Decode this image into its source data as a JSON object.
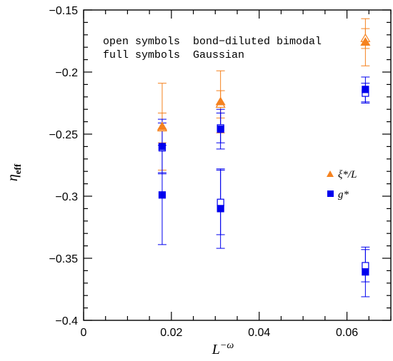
{
  "chart_data": {
    "type": "scatter",
    "title": "",
    "xlabel": "L",
    "xlabel_sup": "−ω",
    "ylabel": "η",
    "ylabel_sub": "eff",
    "xlim": [
      0,
      0.07
    ],
    "ylim": [
      -0.4,
      -0.15
    ],
    "x_ticks": [
      0,
      0.02,
      0.04,
      0.06
    ],
    "x_tick_labels": [
      "0",
      "0.02",
      "0.04",
      "0.06"
    ],
    "y_ticks": [
      -0.4,
      -0.35,
      -0.3,
      -0.25,
      -0.2,
      -0.15
    ],
    "y_tick_labels": [
      "−0.4",
      "−0.35",
      "−0.3",
      "−0.25",
      "−0.2",
      "−0.15"
    ],
    "grid": false,
    "legend_position": "right-middle",
    "annotations": [
      "open symbols  bond−diluted bimodal",
      "full symbols  Gaussian"
    ],
    "series": [
      {
        "name": "ξ*/L",
        "label_main": "ξ*/L",
        "color": "#f5821f",
        "marker": "triangle",
        "points": [
          {
            "x": 0.0179,
            "y": -0.245,
            "err": 0.012,
            "fill": "open"
          },
          {
            "x": 0.0179,
            "y": -0.244,
            "err": 0.035,
            "fill": "full"
          },
          {
            "x": 0.0312,
            "y": -0.226,
            "err": 0.011,
            "fill": "open"
          },
          {
            "x": 0.0312,
            "y": -0.224,
            "err": 0.025,
            "fill": "full"
          },
          {
            "x": 0.0642,
            "y": -0.173,
            "err": 0.008,
            "fill": "open"
          },
          {
            "x": 0.0642,
            "y": -0.176,
            "err": 0.019,
            "fill": "full"
          }
        ]
      },
      {
        "name": "g*",
        "label_main": "g*",
        "color": "#0000ee",
        "marker": "square",
        "points": [
          {
            "x": 0.0179,
            "y": -0.261,
            "err": 0.02,
            "fill": "open"
          },
          {
            "x": 0.0179,
            "y": -0.26,
            "err": 0.022,
            "fill": "full"
          },
          {
            "x": 0.0179,
            "y": -0.299,
            "err": 0.04,
            "fill": "full"
          },
          {
            "x": 0.0312,
            "y": -0.245,
            "err": 0.012,
            "fill": "open"
          },
          {
            "x": 0.0312,
            "y": -0.246,
            "err": 0.016,
            "fill": "full"
          },
          {
            "x": 0.0312,
            "y": -0.305,
            "err": 0.026,
            "fill": "open"
          },
          {
            "x": 0.0312,
            "y": -0.31,
            "err": 0.032,
            "fill": "full"
          },
          {
            "x": 0.0642,
            "y": -0.217,
            "err": 0.008,
            "fill": "open"
          },
          {
            "x": 0.0642,
            "y": -0.214,
            "err": 0.01,
            "fill": "full"
          },
          {
            "x": 0.0642,
            "y": -0.356,
            "err": 0.013,
            "fill": "open"
          },
          {
            "x": 0.0642,
            "y": -0.361,
            "err": 0.02,
            "fill": "full"
          }
        ]
      }
    ]
  }
}
